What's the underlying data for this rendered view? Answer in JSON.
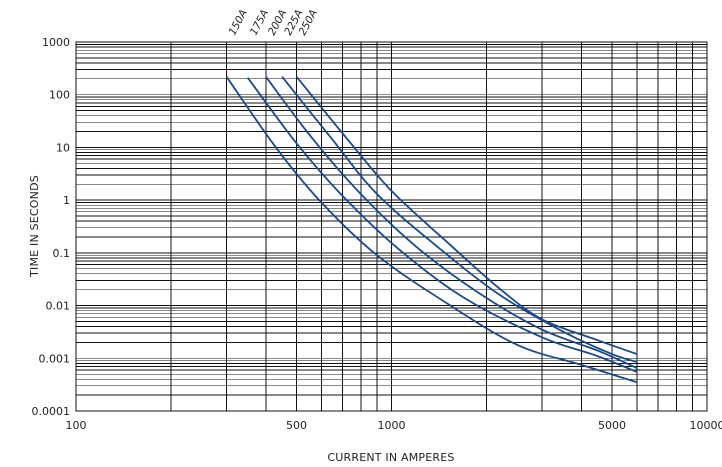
{
  "chart_data": {
    "type": "line",
    "title": "",
    "xlabel": "CURRENT IN AMPERES",
    "ylabel": "TIME IN SECONDS",
    "x_scale": "log",
    "y_scale": "log",
    "xlim": [
      100,
      10000
    ],
    "ylim": [
      0.0001,
      1000
    ],
    "grid": true,
    "line_color": "#1a4a8a",
    "x_tick_labels": [
      {
        "value": 100,
        "label": "100"
      },
      {
        "value": 500,
        "label": "500"
      },
      {
        "value": 1000,
        "label": "1000"
      },
      {
        "value": 5000,
        "label": "5000"
      },
      {
        "value": 10000,
        "label": "10000"
      }
    ],
    "y_tick_labels": [
      {
        "value": 1000,
        "label": "1000"
      },
      {
        "value": 100,
        "label": "100"
      },
      {
        "value": 10,
        "label": "10"
      },
      {
        "value": 1,
        "label": "1"
      },
      {
        "value": 0.1,
        "label": "0.1"
      },
      {
        "value": 0.01,
        "label": "0.01"
      },
      {
        "value": 0.001,
        "label": "0.001"
      },
      {
        "value": 0.0001,
        "label": "0.0001"
      }
    ],
    "series": [
      {
        "name": "150A",
        "x": [
          300,
          430,
          600,
          900,
          1500,
          2500,
          4000,
          6000
        ],
        "y": [
          220,
          10,
          0.9,
          0.09,
          0.011,
          0.0018,
          0.00075,
          0.00035
        ]
      },
      {
        "name": "175A",
        "x": [
          350,
          500,
          700,
          1050,
          1700,
          3000,
          4500,
          6000
        ],
        "y": [
          210,
          12,
          1.2,
          0.12,
          0.014,
          0.0025,
          0.0011,
          0.00055
        ]
      },
      {
        "name": "200A",
        "x": [
          400,
          560,
          800,
          1200,
          1900,
          3000,
          4500,
          6000
        ],
        "y": [
          220,
          15,
          1.3,
          0.13,
          0.017,
          0.0035,
          0.0014,
          0.00065
        ]
      },
      {
        "name": "225A",
        "x": [
          450,
          650,
          900,
          1400,
          2200,
          3500,
          5000,
          6000
        ],
        "y": [
          220,
          14,
          1.3,
          0.13,
          0.016,
          0.0032,
          0.0012,
          0.00085
        ]
      },
      {
        "name": "250A",
        "x": [
          500,
          720,
          1000,
          1500,
          2200,
          3000,
          4500,
          6000
        ],
        "y": [
          220,
          15,
          1.5,
          0.16,
          0.021,
          0.0055,
          0.0022,
          0.0012
        ]
      }
    ]
  }
}
